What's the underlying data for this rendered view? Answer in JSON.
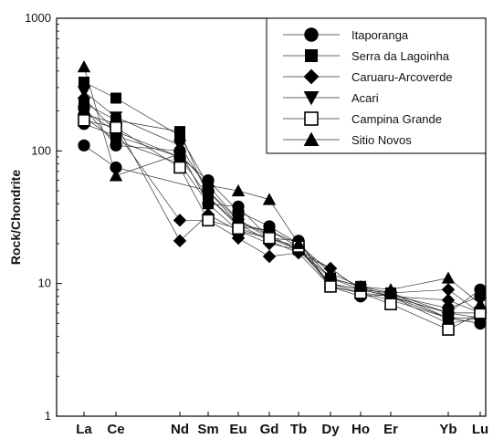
{
  "chart_data": {
    "type": "line",
    "title": "",
    "xlabel": "",
    "ylabel": "Rock/Chondrite",
    "yscale": "log",
    "ylim": [
      1,
      1000
    ],
    "y_ticks": [
      "1",
      "10",
      "100",
      "1000"
    ],
    "y_tick_values": [
      1,
      10,
      100,
      1000
    ],
    "categories": [
      "La",
      "Ce",
      "Nd",
      "Sm",
      "Eu",
      "Gd",
      "Tb",
      "Dy",
      "Ho",
      "Er",
      "Yb",
      "Lu"
    ],
    "legend_position": "top-right",
    "series": [
      {
        "name": "Itaporanga",
        "marker": "circle-filled",
        "samples": [
          [
            110,
            75,
            null,
            50,
            28,
            25,
            19,
            10,
            8.5,
            8,
            6,
            9
          ],
          [
            160,
            130,
            90,
            60,
            35,
            27,
            20,
            11,
            9,
            8.5,
            5.5,
            5
          ],
          [
            210,
            110,
            100,
            40,
            38,
            22,
            21,
            9.5,
            8,
            8.2,
            6.5,
            8
          ]
        ]
      },
      {
        "name": "Serra da Lagoinha",
        "marker": "square-filled",
        "samples": [
          [
            330,
            250,
            130,
            55,
            30,
            23,
            18,
            11,
            9.5,
            8.5,
            6,
            6
          ],
          [
            230,
            170,
            140,
            45,
            27,
            25,
            20,
            11,
            9.5,
            8,
            5.5,
            5.5
          ],
          [
            180,
            120,
            80,
            40,
            25,
            22,
            18,
            10,
            9,
            8,
            5,
            5.5
          ]
        ]
      },
      {
        "name": "Caruaru-Arcoverde",
        "marker": "diamond-filled",
        "samples": [
          [
            250,
            140,
            30,
            30,
            22,
            16,
            17,
            13,
            9,
            8,
            7.5,
            6
          ],
          [
            190,
            160,
            21,
            33,
            25,
            20,
            18,
            13,
            9,
            8.5,
            9,
            6
          ]
        ]
      },
      {
        "name": "Acari",
        "marker": "triangle-down-filled",
        "samples": [
          [
            280,
            180,
            110,
            50,
            30,
            22,
            18,
            10,
            9,
            8,
            6,
            5.5
          ],
          [
            200,
            140,
            90,
            45,
            28,
            21,
            17,
            9.5,
            8.5,
            7.5,
            5.5,
            5
          ]
        ]
      },
      {
        "name": "Campina Grande",
        "marker": "square-open",
        "samples": [
          [
            170,
            150,
            75,
            30,
            26,
            22,
            19,
            9.5,
            8.5,
            7,
            4.5,
            6
          ]
        ]
      },
      {
        "name": "Sitio Novos",
        "marker": "triangle-up-filled",
        "samples": [
          [
            430,
            65,
            95,
            55,
            50,
            43,
            20,
            12,
            9.5,
            9,
            11,
            7
          ]
        ]
      }
    ]
  }
}
